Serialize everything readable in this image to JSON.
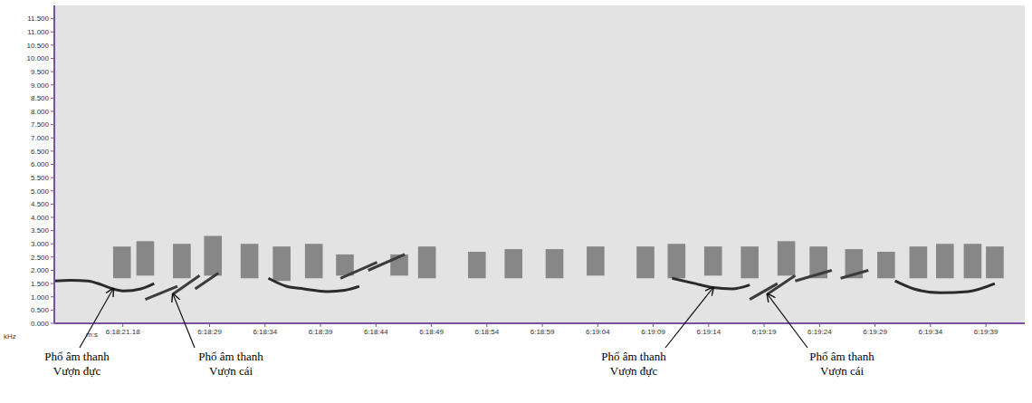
{
  "chart_data": {
    "type": "spectrogram",
    "x_label": "m:s",
    "y_label": "kHz",
    "grid": false,
    "xlim": [
      15,
      102.5
    ],
    "xticks": [
      {
        "value": 21.18,
        "label": "6:18:21.18"
      },
      {
        "value": 29,
        "label": "6:18:29"
      },
      {
        "value": 34,
        "label": "6:18:34"
      },
      {
        "value": 39,
        "label": "6:18:39"
      },
      {
        "value": 44,
        "label": "6:18:44"
      },
      {
        "value": 49,
        "label": "6:18:49"
      },
      {
        "value": 54,
        "label": "6:18:54"
      },
      {
        "value": 59,
        "label": "6:18:59"
      },
      {
        "value": 64,
        "label": "6:19:04"
      },
      {
        "value": 69,
        "label": "6:19:09"
      },
      {
        "value": 74,
        "label": "6:19:14"
      },
      {
        "value": 79,
        "label": "6:19:19"
      },
      {
        "value": 84,
        "label": "6:19:24"
      },
      {
        "value": 89,
        "label": "6:19:29"
      },
      {
        "value": 94,
        "label": "6:19:34"
      },
      {
        "value": 99,
        "label": "6:19:39"
      }
    ],
    "ylim": [
      0,
      12
    ],
    "yticks": [
      {
        "value": 0,
        "label": "0.000"
      },
      {
        "value": 0.5,
        "label": "0.500"
      },
      {
        "value": 1,
        "label": "1.000"
      },
      {
        "value": 1.5,
        "label": "1.500"
      },
      {
        "value": 2,
        "label": "2.000"
      },
      {
        "value": 2.5,
        "label": "2.500"
      },
      {
        "value": 3,
        "label": "3.000"
      },
      {
        "value": 3.5,
        "label": "3.500"
      },
      {
        "value": 4,
        "label": "4.000"
      },
      {
        "value": 4.5,
        "label": "4.500"
      },
      {
        "value": 5,
        "label": "5.000"
      },
      {
        "value": 5.5,
        "label": "5.500"
      },
      {
        "value": 6,
        "label": "6.000"
      },
      {
        "value": 6.5,
        "label": "6.500"
      },
      {
        "value": 7,
        "label": "7.000"
      },
      {
        "value": 7.5,
        "label": "7.500"
      },
      {
        "value": 8,
        "label": "8.000"
      },
      {
        "value": 8.5,
        "label": "8.500"
      },
      {
        "value": 9,
        "label": "9.000"
      },
      {
        "value": 9.5,
        "label": "9.500"
      },
      {
        "value": 10,
        "label": "10.000"
      },
      {
        "value": 10.5,
        "label": "10.500"
      },
      {
        "value": 11,
        "label": "11.000"
      },
      {
        "value": 11.5,
        "label": "11.500"
      }
    ],
    "series": [
      {
        "color": "#2b2b2b",
        "x": [
          15,
          16.5,
          18,
          19.3,
          20.3,
          21.3,
          22.8,
          24.0
        ],
        "values": [
          1.6,
          1.62,
          1.6,
          1.45,
          1.3,
          1.22,
          1.3,
          1.5
        ]
      },
      {
        "color": "#3c3c3c",
        "x": [
          23.2,
          26.1
        ],
        "values": [
          0.9,
          1.4
        ]
      },
      {
        "color": "#3c3c3c",
        "x": [
          25.7,
          28.1
        ],
        "values": [
          1.1,
          1.8
        ]
      },
      {
        "color": "#3c3c3c",
        "x": [
          27.7,
          29.8
        ],
        "values": [
          1.3,
          1.9
        ]
      },
      {
        "color": "#2b2b2b",
        "x": [
          34.3,
          35.9,
          37.5,
          39.6,
          41.2,
          42.5
        ],
        "values": [
          1.7,
          1.4,
          1.3,
          1.2,
          1.25,
          1.4
        ]
      },
      {
        "color": "#3c3c3c",
        "x": [
          40.8,
          44.1
        ],
        "values": [
          1.7,
          2.3
        ]
      },
      {
        "color": "#3c3c3c",
        "x": [
          43.3,
          46.6
        ],
        "values": [
          2.0,
          2.6
        ]
      },
      {
        "color": "#2b2b2b",
        "x": [
          70.7,
          72.8,
          74.4,
          76.1,
          77.7
        ],
        "values": [
          1.7,
          1.5,
          1.35,
          1.3,
          1.45
        ]
      },
      {
        "color": "#3c3c3c",
        "x": [
          77.7,
          80.2
        ],
        "values": [
          0.9,
          1.5
        ]
      },
      {
        "color": "#3c3c3c",
        "x": [
          79.3,
          81.8
        ],
        "values": [
          1.1,
          1.8
        ]
      },
      {
        "color": "#3c3c3c",
        "x": [
          81.8,
          85.1
        ],
        "values": [
          1.6,
          2.0
        ]
      },
      {
        "color": "#3c3c3c",
        "x": [
          85.9,
          88.4
        ],
        "values": [
          1.7,
          2.0
        ]
      },
      {
        "color": "#2b2b2b",
        "x": [
          90.8,
          92.5,
          94.9,
          97.4,
          99.8
        ],
        "values": [
          1.6,
          1.3,
          1.15,
          1.2,
          1.5
        ]
      }
    ],
    "pulses": {
      "color": "#4a4a4a",
      "ranges": [
        {
          "x": [
            20.3,
            21.9
          ],
          "y": [
            1.7,
            2.9
          ]
        },
        {
          "x": [
            22.4,
            24.0
          ],
          "y": [
            1.8,
            3.1
          ]
        },
        {
          "x": [
            25.7,
            27.3
          ],
          "y": [
            1.7,
            3.0
          ]
        },
        {
          "x": [
            28.5,
            30.1
          ],
          "y": [
            1.8,
            3.3
          ]
        },
        {
          "x": [
            31.8,
            33.4
          ],
          "y": [
            1.7,
            3.0
          ]
        },
        {
          "x": [
            34.7,
            36.3
          ],
          "y": [
            1.6,
            2.9
          ]
        },
        {
          "x": [
            37.6,
            39.2
          ],
          "y": [
            1.7,
            3.0
          ]
        },
        {
          "x": [
            40.4,
            42.0
          ],
          "y": [
            1.8,
            2.6
          ]
        },
        {
          "x": [
            45.3,
            46.9
          ],
          "y": [
            1.8,
            2.6
          ]
        },
        {
          "x": [
            47.8,
            49.4
          ],
          "y": [
            1.7,
            2.9
          ]
        },
        {
          "x": [
            52.3,
            53.9
          ],
          "y": [
            1.7,
            2.7
          ]
        },
        {
          "x": [
            55.6,
            57.2
          ],
          "y": [
            1.7,
            2.8
          ]
        },
        {
          "x": [
            59.3,
            60.9
          ],
          "y": [
            1.7,
            2.8
          ]
        },
        {
          "x": [
            63.0,
            64.6
          ],
          "y": [
            1.8,
            2.9
          ]
        },
        {
          "x": [
            67.5,
            69.1
          ],
          "y": [
            1.7,
            2.9
          ]
        },
        {
          "x": [
            70.3,
            71.9
          ],
          "y": [
            1.7,
            3.0
          ]
        },
        {
          "x": [
            73.6,
            75.2
          ],
          "y": [
            1.8,
            2.9
          ]
        },
        {
          "x": [
            76.9,
            78.5
          ],
          "y": [
            1.7,
            2.9
          ]
        },
        {
          "x": [
            80.2,
            81.8
          ],
          "y": [
            1.8,
            3.1
          ]
        },
        {
          "x": [
            83.1,
            84.7
          ],
          "y": [
            1.7,
            2.9
          ]
        },
        {
          "x": [
            86.3,
            87.9
          ],
          "y": [
            1.7,
            2.8
          ]
        },
        {
          "x": [
            89.2,
            90.8
          ],
          "y": [
            1.7,
            2.7
          ]
        },
        {
          "x": [
            92.1,
            93.7
          ],
          "y": [
            1.7,
            2.9
          ]
        },
        {
          "x": [
            94.5,
            96.1
          ],
          "y": [
            1.7,
            3.0
          ]
        },
        {
          "x": [
            97.0,
            98.6
          ],
          "y": [
            1.7,
            3.0
          ]
        },
        {
          "x": [
            99.0,
            100.6
          ],
          "y": [
            1.7,
            2.9
          ]
        }
      ]
    },
    "annotations": [
      {
        "lines": [
          "Phổ âm thanh",
          "Vượn đực"
        ],
        "x": 20.3,
        "y": 1.3
      },
      {
        "lines": [
          "Phổ âm thanh",
          "Vượn cái"
        ],
        "x": 25.7,
        "y": 1.1
      },
      {
        "lines": [
          "Phổ âm thanh",
          "Vượn đực"
        ],
        "x": 74.4,
        "y": 1.35
      },
      {
        "lines": [
          "Phổ âm thanh",
          "Vượn cái"
        ],
        "x": 79.3,
        "y": 1.1
      }
    ]
  }
}
